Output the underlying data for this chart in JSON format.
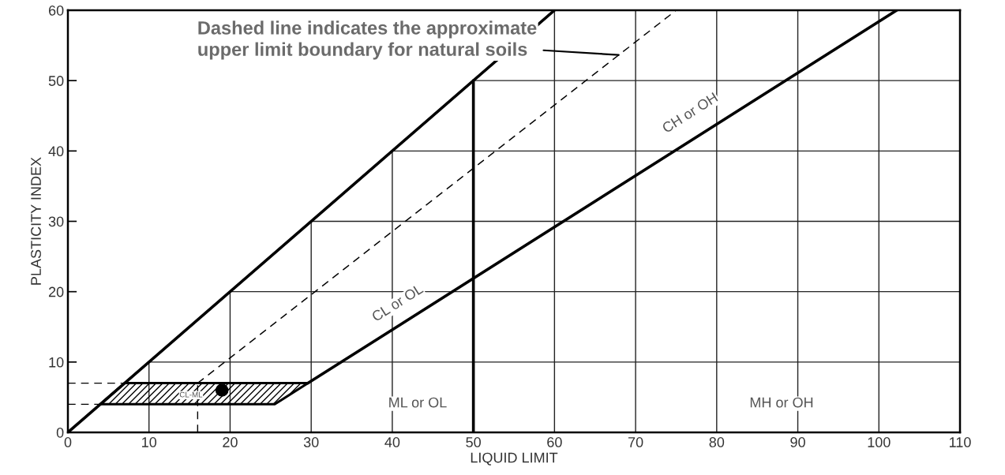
{
  "chart_data": {
    "type": "line",
    "xlabel": "LIQUID LIMIT",
    "ylabel": "PLASTICITY INDEX",
    "xlim": [
      0,
      110
    ],
    "ylim": [
      0,
      60
    ],
    "xticks": [
      0,
      10,
      20,
      30,
      40,
      50,
      60,
      70,
      80,
      90,
      100,
      110
    ],
    "yticks": [
      0,
      10,
      20,
      30,
      40,
      50,
      60
    ],
    "grid": true,
    "series": [
      {
        "color": "#000000",
        "line_style": "solid",
        "x": [
          0,
          60
        ],
        "values": [
          0,
          60
        ]
      },
      {
        "color": "#000000",
        "line_style": "solid",
        "x": [
          29.6,
          102.2
        ],
        "values": [
          7,
          60
        ]
      },
      {
        "color": "#000000",
        "line_style": "solid",
        "x": [
          50,
          50
        ],
        "values": [
          0,
          50
        ]
      },
      {
        "color": "#000000",
        "line_style": "dashed",
        "x": [
          16,
          75
        ],
        "values": [
          7,
          60
        ]
      },
      {
        "color": "#000000",
        "line_style": "dashed",
        "x": [
          16,
          16
        ],
        "values": [
          0,
          7
        ]
      },
      {
        "color": "#000000",
        "line_style": "dashed",
        "x": [
          0,
          7
        ],
        "values": [
          7,
          7
        ]
      },
      {
        "color": "#000000",
        "line_style": "dashed",
        "x": [
          0,
          4
        ],
        "values": [
          4,
          4
        ]
      },
      {
        "type": "area",
        "color": "#000000",
        "x": [
          4,
          25.5,
          29.6,
          7,
          4
        ],
        "values": [
          4,
          4,
          7,
          7,
          4
        ]
      },
      {
        "type": "scatter",
        "color": "#000000",
        "marker": "circle",
        "x": [
          19
        ],
        "values": [
          6
        ]
      }
    ],
    "annotations": [
      "Dashed line indicates the approximate\nupper limit boundary for natural soils",
      "CL-ML",
      "ML or OL",
      "MH or OH",
      "CL or OL",
      "CH or OH"
    ]
  }
}
